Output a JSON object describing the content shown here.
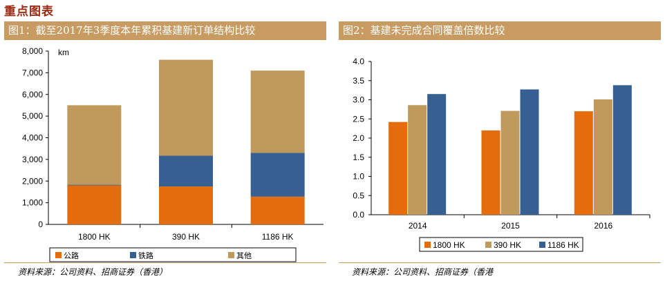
{
  "page": {
    "section_title": "重点图表"
  },
  "left_panel": {
    "header": "图1：截至2017年3季度本年累积基建新订单结构比较",
    "source": "资料来源：公司资料、招商证券（香港）"
  },
  "right_panel": {
    "header": "图2：基建未完成合同覆盖倍数比较",
    "source": "资料来源：公司资料、招商证券（香港"
  },
  "colors": {
    "orange": "#e46c0a",
    "blue": "#376092",
    "tan": "#c09a5c",
    "header_bg": "#c79b62",
    "title_red": "#9b2a12"
  },
  "chart_data": [
    {
      "type": "bar",
      "stacked": true,
      "unit_label": "km",
      "categories": [
        "1800 HK",
        "390 HK",
        "1186 HK"
      ],
      "series": [
        {
          "name": "公路",
          "color": "#e46c0a",
          "values": [
            1800,
            1750,
            1280
          ]
        },
        {
          "name": "铁路",
          "color": "#376092",
          "values": [
            30,
            1420,
            2020
          ]
        },
        {
          "name": "其他",
          "color": "#c09a5c",
          "values": [
            3670,
            4430,
            3800
          ]
        }
      ],
      "ylim": [
        0,
        8000
      ],
      "yticks": [
        "0",
        "1,000",
        "2,000",
        "3,000",
        "4,000",
        "5,000",
        "6,000",
        "7,000",
        "8,000"
      ],
      "grid": false,
      "legend_position": "bottom"
    },
    {
      "type": "bar",
      "stacked": false,
      "categories": [
        "2014",
        "2015",
        "2016"
      ],
      "series": [
        {
          "name": "1800 HK",
          "color": "#e46c0a",
          "values": [
            2.42,
            2.2,
            2.7
          ]
        },
        {
          "name": "390 HK",
          "color": "#c09a5c",
          "values": [
            2.86,
            2.71,
            3.01
          ]
        },
        {
          "name": "1186 HK",
          "color": "#376092",
          "values": [
            3.15,
            3.27,
            3.38
          ]
        }
      ],
      "ylim": [
        0,
        4
      ],
      "yticks": [
        "0.0",
        "0.5",
        "1.0",
        "1.5",
        "2.0",
        "2.5",
        "3.0",
        "3.5",
        "4.0"
      ],
      "grid": false,
      "legend_position": "bottom"
    }
  ]
}
